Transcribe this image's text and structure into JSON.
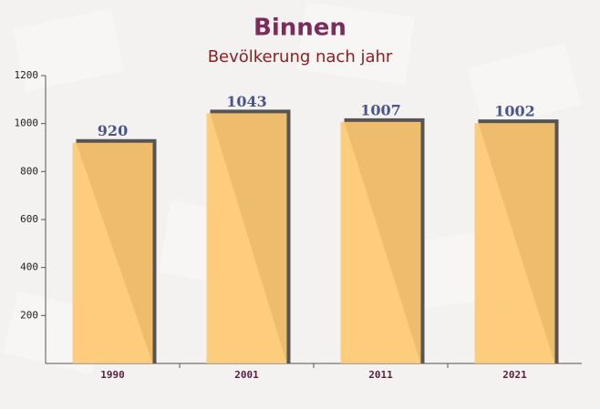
{
  "chart_data": {
    "type": "bar",
    "title": "Binnen",
    "subtitle": "Bevölkerung nach jahr",
    "categories": [
      "1990",
      "2001",
      "2011",
      "2021"
    ],
    "values": [
      920,
      1043,
      1007,
      1002
    ],
    "color": "#ffc870",
    "ylim": [
      0,
      1200
    ],
    "yticks": [
      200,
      400,
      600,
      800,
      1000,
      1200
    ]
  }
}
